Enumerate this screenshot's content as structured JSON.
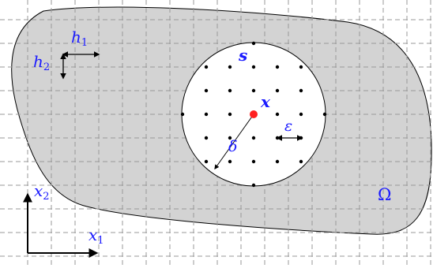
{
  "labels": {
    "h1": "h",
    "h1_sub": "1",
    "h2": "h",
    "h2_sub": "2",
    "s": "s",
    "x": "x",
    "epsilon": "ε",
    "delta": "δ",
    "omega": "Ω",
    "x1": "x",
    "x1_sub": "1",
    "x2": "x",
    "x2_sub": "2"
  },
  "colors": {
    "domain_fill": "#d3d3d3",
    "grid": "#9a9a9a",
    "label": "#1a1aff",
    "center_point": "#ff2020",
    "points": "#000000"
  }
}
